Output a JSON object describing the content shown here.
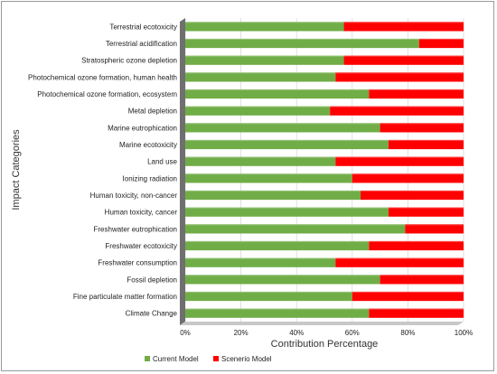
{
  "chart_data": {
    "type": "bar",
    "orientation": "horizontal",
    "stacked": true,
    "xlabel": "Contribution  Percentage",
    "ylabel": "Impact Categories",
    "xlim": [
      0,
      100
    ],
    "x_ticks": [
      "0%",
      "20%",
      "40%",
      "60%",
      "80%",
      "100%"
    ],
    "grid": "vertical",
    "legend_position": "bottom",
    "categories": [
      "Terrestrial ecotoxicity",
      "Terrestrial acidification",
      "Stratospheric ozone depletion",
      "Photochemical ozone formation, human health",
      "Photochemical ozone formation, ecosystem",
      "Metal depletion",
      "Marine eutrophication",
      "Marine ecotoxicity",
      "Land use",
      "Ionizing radiation",
      "Human toxicity, non-cancer",
      "Human toxicity, cancer",
      "Freshwater eutrophication",
      "Freshwater ecotoxicity",
      "Freshwater consumption",
      "Fossil depletion",
      "Fine particulate matter formation",
      "Climate Change"
    ],
    "series": [
      {
        "name": "Current Model",
        "color": "#70ad47",
        "values": [
          57,
          84,
          57,
          54,
          66,
          52,
          70,
          73,
          54,
          60,
          63,
          73,
          79,
          66,
          54,
          70,
          60,
          66
        ]
      },
      {
        "name": "Scenerio Model",
        "color": "#ff0000",
        "values": [
          43,
          16,
          43,
          46,
          34,
          48,
          30,
          27,
          46,
          40,
          37,
          27,
          21,
          34,
          46,
          30,
          40,
          34
        ]
      }
    ]
  }
}
